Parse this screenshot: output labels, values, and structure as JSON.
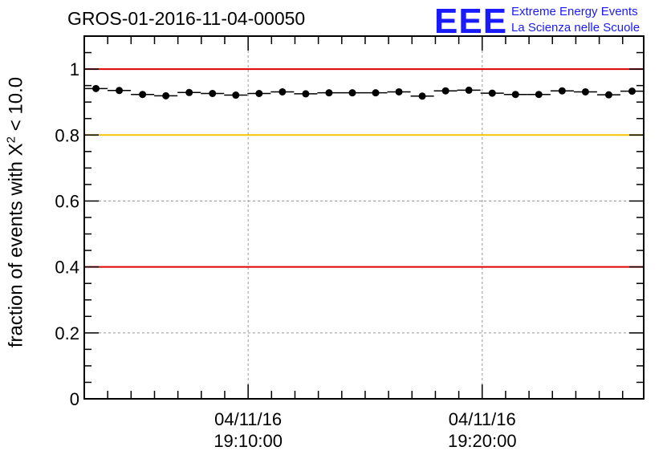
{
  "title": "GROS-01-2016-11-04-00050",
  "logo": {
    "mark": "EEE",
    "line1": "Extreme Energy Events",
    "line2": "La Scienza nelle Scuole"
  },
  "axis": {
    "ylabel_prefix": "fraction of events with X",
    "ylabel_sup": "2",
    "ylabel_suffix": " < 10.0"
  },
  "colors": {
    "red": "#e00000",
    "yellow": "#f5c400",
    "logo_blue": "#1a1aff"
  },
  "chart_data": {
    "type": "scatter",
    "title": "GROS-01-2016-11-04-00050",
    "ylabel": "fraction of events with X^2 < 10.0",
    "ylim": [
      0,
      1.1
    ],
    "yticks": [
      "0",
      "0.2",
      "0.4",
      "0.6",
      "0.8",
      "1"
    ],
    "xticks": [
      {
        "date": "04/11/16",
        "time": "19:10:00"
      },
      {
        "date": "04/11/16",
        "time": "19:20:00"
      }
    ],
    "x_range_minutes_after_19_00": [
      3.0,
      26.9
    ],
    "grid": true,
    "reference_lines": [
      {
        "y": 1.0,
        "color": "red"
      },
      {
        "y": 0.8,
        "color": "yellow"
      },
      {
        "y": 0.4,
        "color": "red"
      }
    ],
    "points": [
      0.941,
      0.935,
      0.923,
      0.919,
      0.929,
      0.926,
      0.921,
      0.926,
      0.931,
      0.925,
      0.928,
      0.928,
      0.928,
      0.931,
      0.918,
      0.934,
      0.936,
      0.927,
      0.923,
      0.923,
      0.934,
      0.931,
      0.922,
      0.933
    ]
  }
}
